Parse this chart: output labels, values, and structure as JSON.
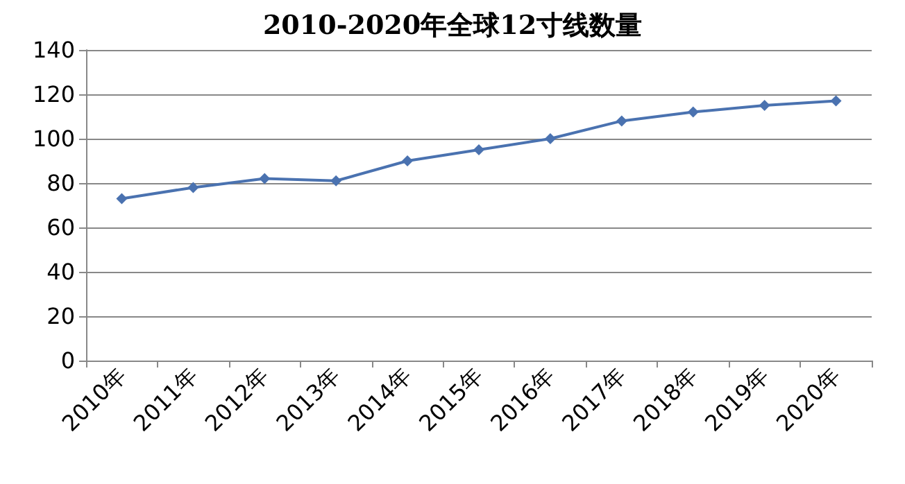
{
  "chart_data": {
    "type": "line",
    "title": "2010-2020年全球12寸线数量",
    "categories": [
      "2010年",
      "2011年",
      "2012年",
      "2013年",
      "2014年",
      "2015年",
      "2016年",
      "2017年",
      "2018年",
      "2019年",
      "2020年"
    ],
    "series": [
      {
        "color": "#4a72b0",
        "values": [
          73,
          78,
          82,
          81,
          90,
          95,
          100,
          108,
          112,
          115,
          117
        ]
      }
    ],
    "ylim": [
      0,
      140
    ],
    "yticks": [
      0,
      20,
      40,
      60,
      80,
      100,
      120,
      140
    ],
    "grid": "y",
    "marker": "diamond",
    "line_style": "solid"
  }
}
